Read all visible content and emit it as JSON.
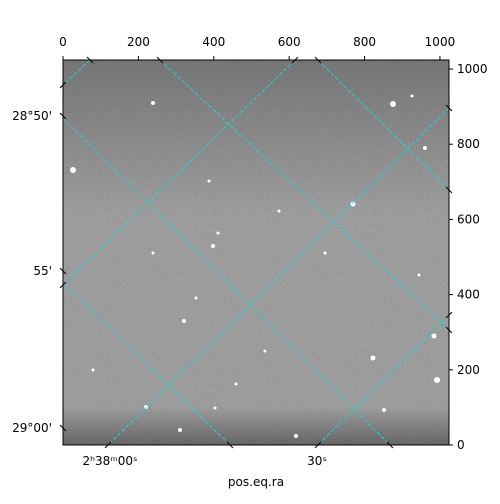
{
  "chart_data": {
    "type": "image",
    "xlabel": "pos.eq.ra",
    "xlim": [
      0,
      1024
    ],
    "ylim": [
      0,
      1024
    ],
    "xticks": [
      0,
      200,
      400,
      600,
      800,
      1000
    ],
    "yticks": [
      0,
      200,
      400,
      600,
      800,
      1000
    ],
    "ra_tick_labels": [
      "2ʰ38ᵐ00ˢ",
      "30ˢ"
    ],
    "dec_tick_labels": [
      "28°50'",
      "55'",
      "29°00'"
    ]
  }
}
